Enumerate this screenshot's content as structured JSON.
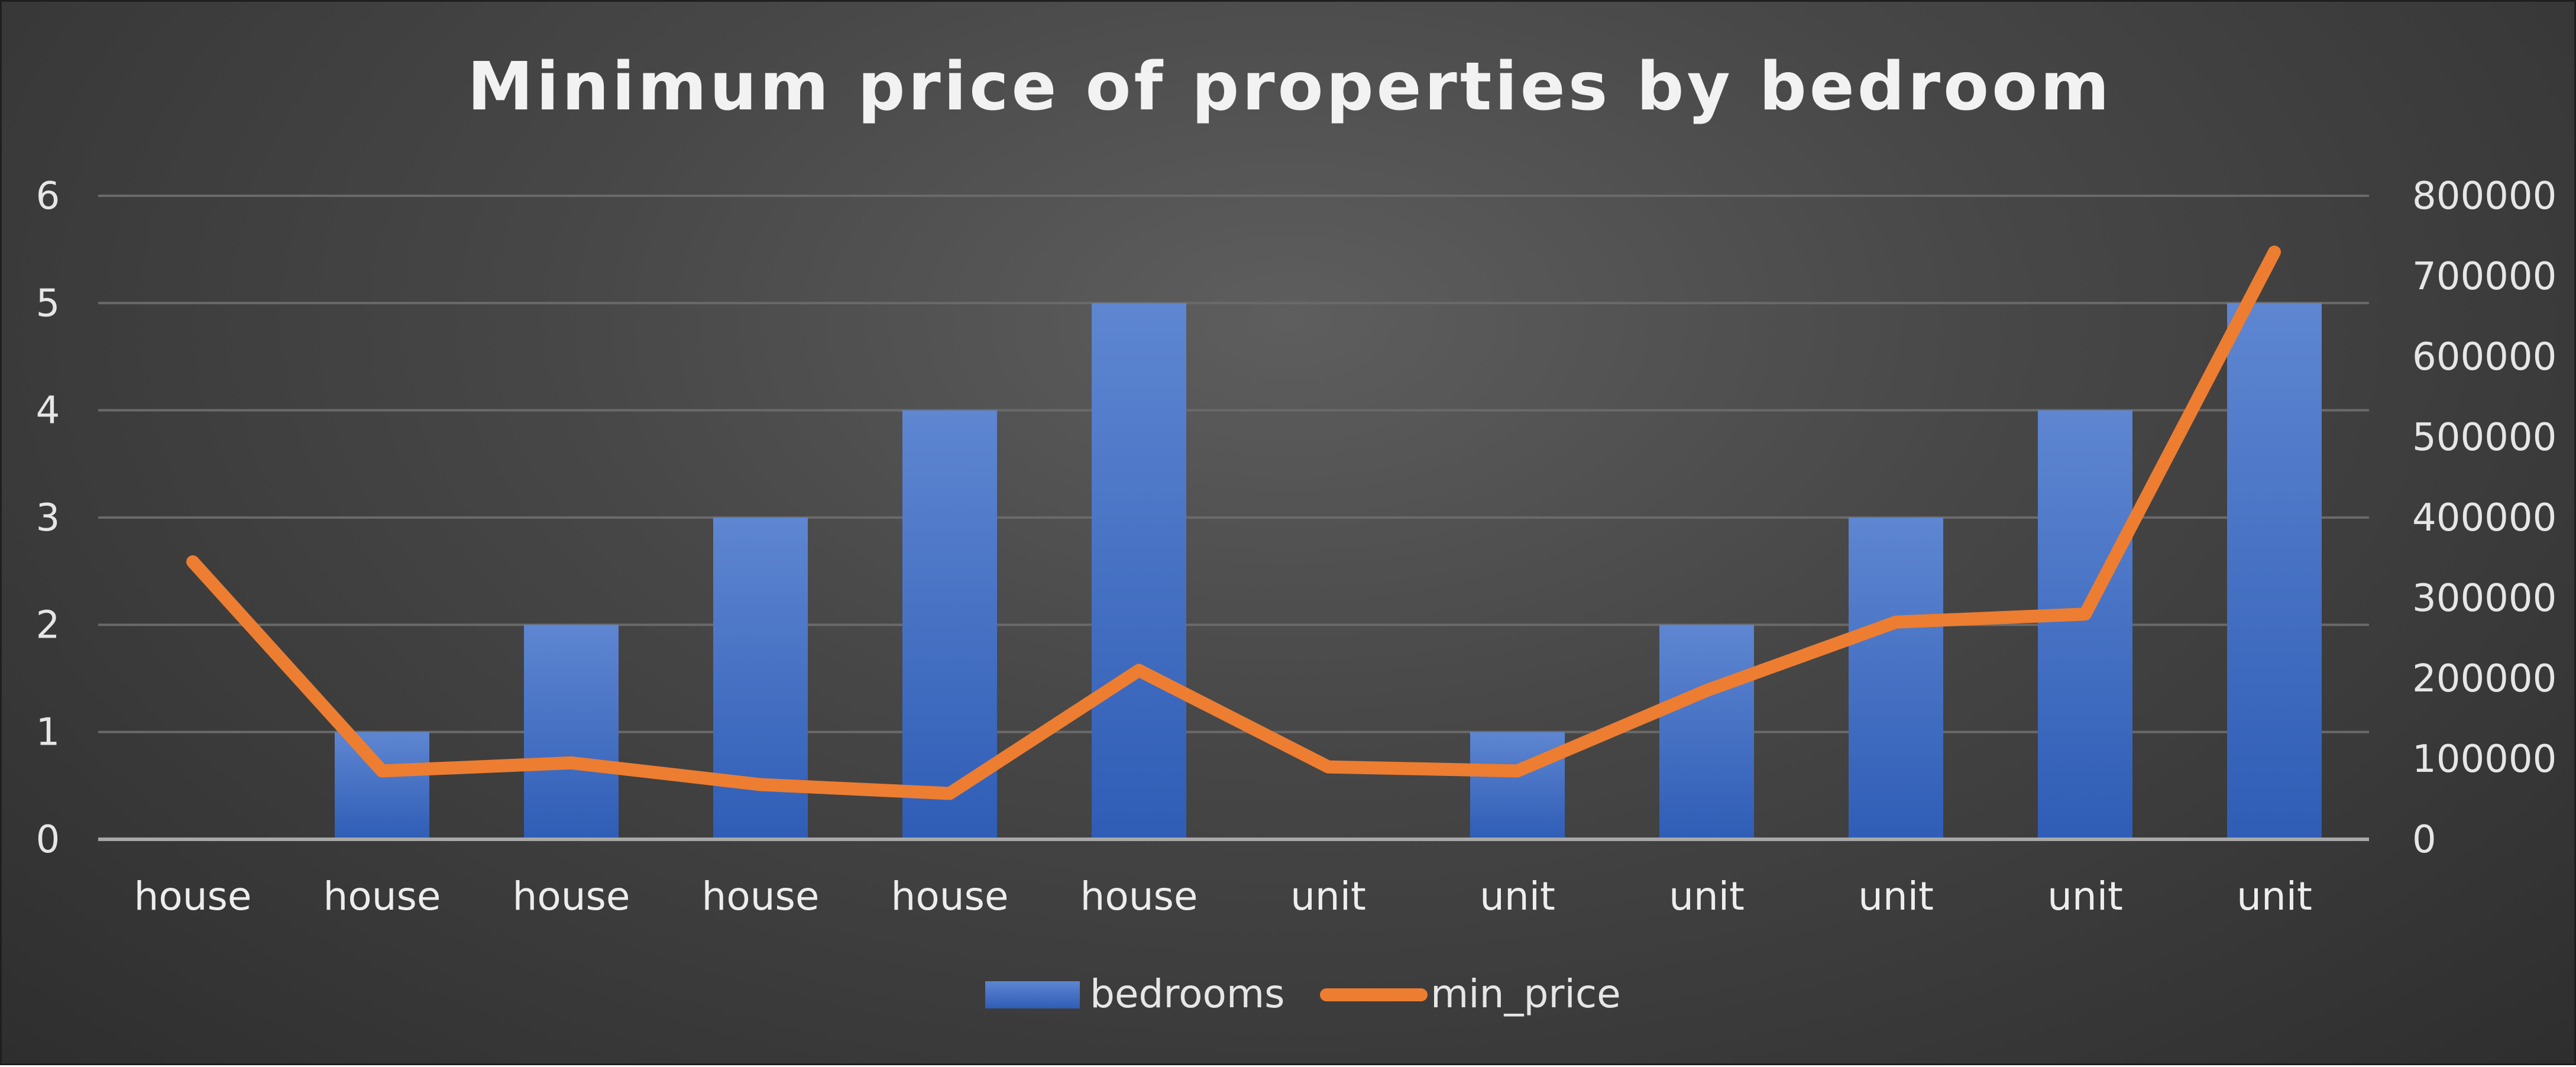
{
  "chart_data": {
    "type": "bar+line",
    "title": "Minimum price of properties by bedroom",
    "categories": [
      "house",
      "house",
      "house",
      "house",
      "house",
      "house",
      "unit",
      "unit",
      "unit",
      "unit",
      "unit",
      "unit"
    ],
    "series": [
      {
        "name": "bedrooms",
        "type": "bar",
        "axis": "left",
        "color": "#4472c4",
        "values": [
          0,
          1,
          2,
          3,
          4,
          5,
          0,
          1,
          2,
          3,
          4,
          5
        ]
      },
      {
        "name": "min_price",
        "type": "line",
        "axis": "right",
        "color": "#ed7d31",
        "values": [
          345000,
          85000,
          95000,
          68000,
          57000,
          210000,
          90000,
          85000,
          185000,
          270000,
          280000,
          730000
        ]
      }
    ],
    "y_left": {
      "min": 0,
      "max": 6,
      "ticks": [
        "0",
        "1",
        "2",
        "3",
        "4",
        "5",
        "6"
      ]
    },
    "y_right": {
      "min": 0,
      "max": 800000,
      "ticks": [
        "0",
        "100000",
        "200000",
        "300000",
        "400000",
        "500000",
        "600000",
        "700000",
        "800000"
      ]
    },
    "gridlines": true,
    "legend": {
      "position": "bottom",
      "items": [
        "bedrooms",
        "min_price"
      ]
    }
  }
}
